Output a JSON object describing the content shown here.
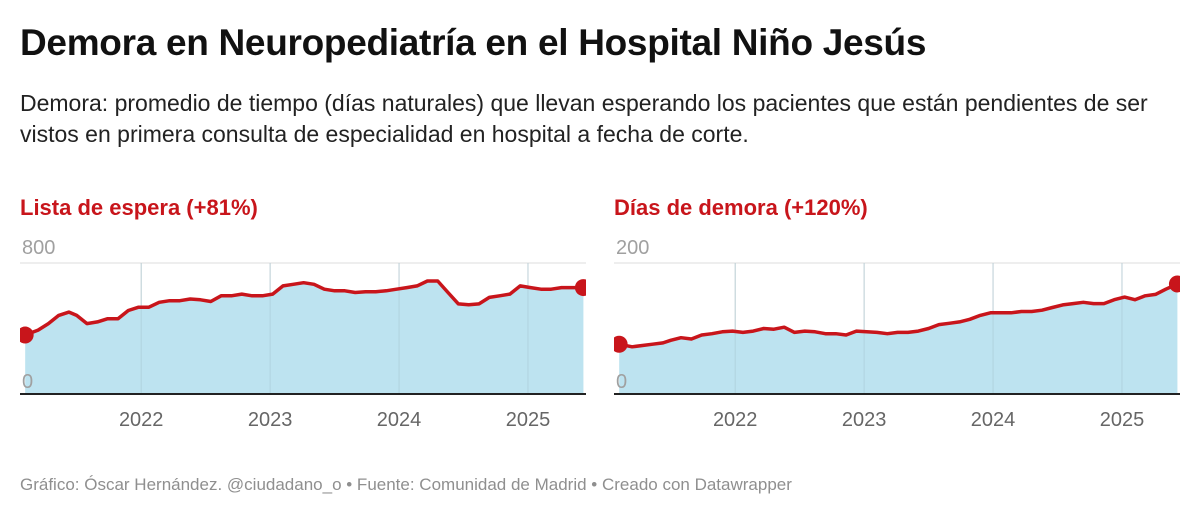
{
  "title": "Demora en Neuropediatría en el Hospital Niño Jesús",
  "subtitle": "Demora: promedio de tiempo (días naturales) que llevan esperando los pacientes que están pendientes de ser vistos en primera consulta de especialidad en hospital a fecha de corte.",
  "footer": "Gráfico: Óscar Hernández. @ciudadano_o • Fuente: Comunidad de Madrid • Creado con Datawrapper",
  "colors": {
    "line": "#c8151b",
    "area": "#bde3f0",
    "title": "#c8151b"
  },
  "chart_data": [
    {
      "type": "area",
      "title": "Lista de espera (+81%)",
      "ylim": [
        0,
        800
      ],
      "yticks": [
        "0",
        "800"
      ],
      "xticks": [
        "2022",
        "2023",
        "2024",
        "2025"
      ],
      "xlim": [
        2021.06,
        2025.45
      ],
      "x": [
        2021.1,
        2021.2,
        2021.28,
        2021.36,
        2021.44,
        2021.5,
        2021.58,
        2021.66,
        2021.74,
        2021.82,
        2021.9,
        2021.98,
        2022.06,
        2022.14,
        2022.22,
        2022.3,
        2022.38,
        2022.46,
        2022.54,
        2022.62,
        2022.7,
        2022.78,
        2022.86,
        2022.94,
        2023.02,
        2023.1,
        2023.18,
        2023.26,
        2023.34,
        2023.42,
        2023.5,
        2023.58,
        2023.66,
        2023.74,
        2023.82,
        2023.9,
        2023.98,
        2024.06,
        2024.14,
        2024.22,
        2024.3,
        2024.38,
        2024.46,
        2024.54,
        2024.62,
        2024.7,
        2024.78,
        2024.86,
        2024.94,
        2025.02,
        2025.1,
        2025.18,
        2025.26,
        2025.34,
        2025.43
      ],
      "values": [
        360,
        390,
        430,
        480,
        500,
        480,
        430,
        440,
        460,
        460,
        510,
        530,
        530,
        560,
        570,
        570,
        580,
        575,
        565,
        600,
        600,
        610,
        600,
        600,
        610,
        660,
        670,
        680,
        670,
        640,
        630,
        630,
        620,
        625,
        625,
        630,
        640,
        650,
        660,
        690,
        690,
        620,
        550,
        545,
        550,
        590,
        600,
        610,
        660,
        650,
        640,
        640,
        650,
        650,
        650
      ]
    },
    {
      "type": "area",
      "title": "Días de demora (+120%)",
      "ylim": [
        0,
        200
      ],
      "yticks": [
        "0",
        "200"
      ],
      "xticks": [
        "2022",
        "2023",
        "2024",
        "2025"
      ],
      "xlim": [
        2021.06,
        2025.45
      ],
      "x": [
        2021.1,
        2021.2,
        2021.28,
        2021.36,
        2021.44,
        2021.5,
        2021.58,
        2021.66,
        2021.74,
        2021.82,
        2021.9,
        2021.98,
        2022.06,
        2022.14,
        2022.22,
        2022.3,
        2022.38,
        2022.46,
        2022.54,
        2022.62,
        2022.7,
        2022.78,
        2022.86,
        2022.94,
        2023.02,
        2023.1,
        2023.18,
        2023.26,
        2023.34,
        2023.42,
        2023.5,
        2023.58,
        2023.66,
        2023.74,
        2023.82,
        2023.9,
        2023.98,
        2024.06,
        2024.14,
        2024.22,
        2024.3,
        2024.38,
        2024.46,
        2024.54,
        2024.62,
        2024.7,
        2024.78,
        2024.86,
        2024.94,
        2025.02,
        2025.1,
        2025.18,
        2025.26,
        2025.34,
        2025.43
      ],
      "values": [
        76,
        72,
        74,
        76,
        78,
        82,
        86,
        84,
        90,
        92,
        95,
        96,
        94,
        96,
        100,
        99,
        102,
        94,
        96,
        95,
        92,
        92,
        90,
        96,
        95,
        94,
        92,
        94,
        94,
        96,
        100,
        106,
        108,
        110,
        114,
        120,
        124,
        124,
        124,
        126,
        126,
        128,
        132,
        136,
        138,
        140,
        138,
        138,
        144,
        148,
        144,
        150,
        152,
        160,
        168
      ]
    }
  ]
}
